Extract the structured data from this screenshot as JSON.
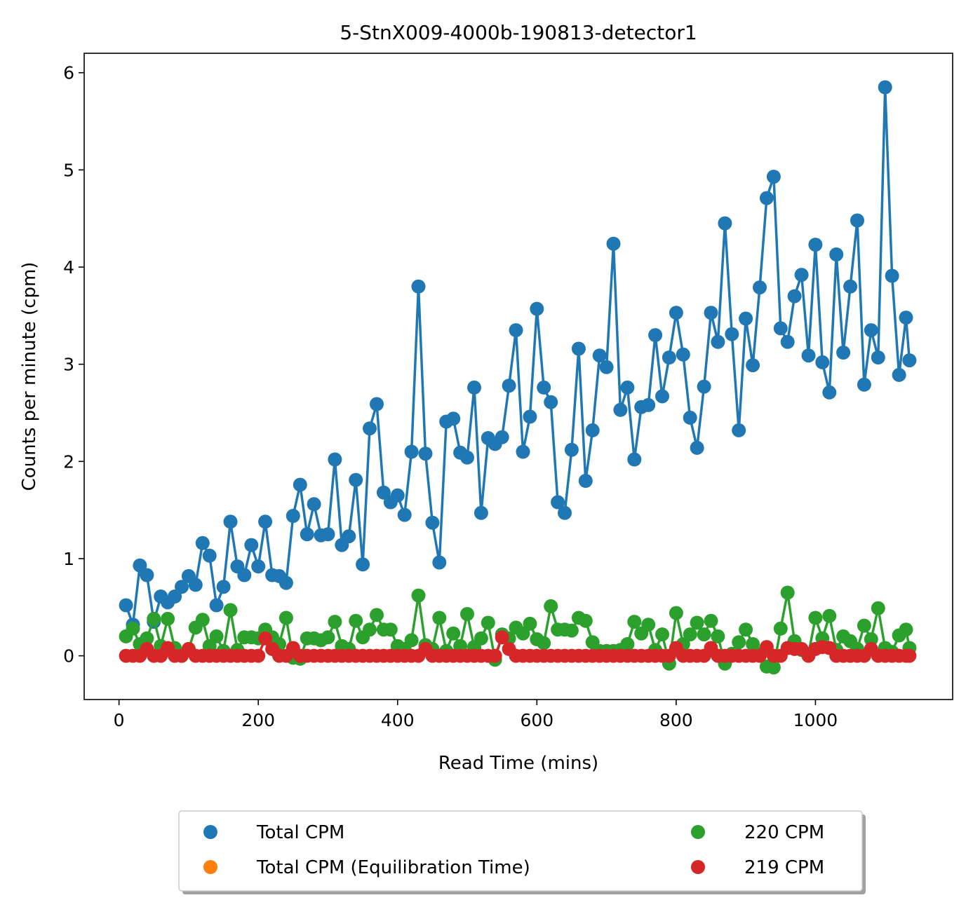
{
  "chart_data": {
    "type": "line",
    "title": "5-StnX009-4000b-190813-detector1",
    "xlabel": "Read Time (mins)",
    "ylabel": "Counts per minute (cpm)",
    "xlim": [
      -50,
      1197
    ],
    "ylim": [
      -0.45,
      6.2
    ],
    "xticks": [
      0,
      200,
      400,
      600,
      800,
      1000
    ],
    "yticks": [
      0,
      1,
      2,
      3,
      4,
      5,
      6
    ],
    "grid": false,
    "legend_placement": "bottom-center",
    "series": [
      {
        "name": "Total CPM",
        "color": "#1f77b4",
        "x": [
          10,
          20,
          30,
          40,
          50,
          60,
          70,
          80,
          90,
          100,
          110,
          120,
          130,
          140,
          150,
          160,
          170,
          180,
          190,
          200,
          210,
          220,
          230,
          240,
          250,
          260,
          270,
          280,
          290,
          300,
          310,
          320,
          330,
          340,
          350,
          360,
          370,
          380,
          390,
          400,
          410,
          420,
          430,
          440,
          450,
          460,
          470,
          480,
          490,
          500,
          510,
          520,
          530,
          540,
          550,
          560,
          570,
          580,
          590,
          600,
          610,
          620,
          630,
          640,
          650,
          660,
          670,
          680,
          690,
          700,
          710,
          720,
          730,
          740,
          750,
          760,
          770,
          780,
          790,
          800,
          810,
          820,
          830,
          840,
          850,
          860,
          870,
          880,
          890,
          900,
          910,
          920,
          930,
          940,
          950,
          960,
          970,
          980,
          990,
          1000,
          1010,
          1020,
          1030,
          1040,
          1050,
          1060,
          1070,
          1080,
          1090,
          1100,
          1110,
          1120,
          1130,
          1135
        ],
        "y": [
          0.52,
          0.32,
          0.93,
          0.83,
          0.35,
          0.61,
          0.55,
          0.61,
          0.71,
          0.82,
          0.73,
          1.16,
          1.03,
          0.52,
          0.71,
          1.38,
          0.92,
          0.83,
          1.14,
          0.92,
          1.38,
          0.83,
          0.82,
          0.75,
          1.44,
          1.76,
          1.25,
          1.56,
          1.24,
          1.25,
          2.02,
          1.14,
          1.23,
          1.81,
          0.94,
          2.34,
          2.59,
          1.68,
          1.58,
          1.65,
          1.45,
          2.1,
          3.8,
          2.08,
          1.37,
          0.96,
          2.41,
          2.44,
          2.09,
          2.04,
          2.76,
          1.47,
          2.24,
          2.18,
          2.25,
          2.78,
          3.35,
          2.1,
          2.46,
          3.57,
          2.76,
          2.61,
          1.58,
          1.47,
          2.12,
          3.16,
          1.8,
          2.32,
          3.09,
          2.97,
          4.24,
          2.53,
          2.76,
          2.02,
          2.56,
          2.58,
          3.3,
          2.67,
          3.07,
          3.53,
          3.1,
          2.45,
          2.14,
          2.77,
          3.53,
          3.23,
          4.45,
          3.31,
          2.32,
          3.47,
          2.99,
          3.79,
          4.71,
          4.93,
          3.37,
          3.23,
          3.7,
          3.92,
          3.09,
          4.23,
          3.02,
          2.71,
          4.13,
          3.12,
          3.8,
          4.48,
          2.79,
          3.35,
          3.07,
          5.85,
          3.91,
          2.89,
          3.48,
          3.04
        ]
      },
      {
        "name": "Total CPM (Equilibration Time)",
        "color": "#ff7f0e",
        "x": [],
        "y": []
      },
      {
        "name": "220 CPM",
        "color": "#2ca02c",
        "x": [
          10,
          20,
          30,
          40,
          50,
          60,
          70,
          80,
          90,
          100,
          110,
          120,
          130,
          140,
          150,
          160,
          170,
          180,
          190,
          200,
          210,
          220,
          230,
          240,
          250,
          260,
          270,
          280,
          290,
          300,
          310,
          320,
          330,
          340,
          350,
          360,
          370,
          380,
          390,
          400,
          410,
          420,
          430,
          440,
          450,
          460,
          470,
          480,
          490,
          500,
          510,
          520,
          530,
          540,
          550,
          560,
          570,
          580,
          590,
          600,
          610,
          620,
          630,
          640,
          650,
          660,
          670,
          680,
          690,
          700,
          710,
          720,
          730,
          740,
          750,
          760,
          770,
          780,
          790,
          800,
          810,
          820,
          830,
          840,
          850,
          860,
          870,
          880,
          890,
          900,
          910,
          920,
          930,
          940,
          950,
          960,
          970,
          980,
          990,
          1000,
          1010,
          1020,
          1030,
          1040,
          1050,
          1060,
          1070,
          1080,
          1090,
          1100,
          1110,
          1120,
          1130,
          1135
        ],
        "y": [
          0.2,
          0.28,
          0.12,
          0.18,
          0.38,
          0.1,
          0.38,
          0.08,
          0.0,
          0.07,
          0.29,
          0.37,
          0.1,
          0.2,
          0.05,
          0.47,
          0.06,
          0.19,
          0.19,
          0.18,
          0.27,
          0.19,
          0.12,
          0.39,
          -0.02,
          -0.03,
          0.18,
          0.18,
          0.16,
          0.19,
          0.35,
          0.1,
          0.07,
          0.36,
          0.19,
          0.27,
          0.42,
          0.27,
          0.27,
          0.1,
          0.07,
          0.16,
          0.62,
          0.11,
          0.07,
          0.39,
          0.05,
          0.23,
          0.1,
          0.43,
          0.09,
          0.18,
          0.34,
          -0.04,
          0.22,
          0.18,
          0.29,
          0.23,
          0.33,
          0.17,
          0.13,
          0.51,
          0.27,
          0.27,
          0.26,
          0.39,
          0.36,
          0.14,
          0.05,
          0.05,
          0.05,
          0.06,
          0.12,
          0.35,
          0.23,
          0.32,
          0.06,
          0.22,
          -0.08,
          0.44,
          0.12,
          0.22,
          0.34,
          0.22,
          0.36,
          0.2,
          -0.08,
          0.02,
          0.14,
          0.27,
          0.12,
          0.02,
          -0.11,
          -0.12,
          0.28,
          0.65,
          0.15,
          0.06,
          0.02,
          0.39,
          0.18,
          0.41,
          0.06,
          0.2,
          0.15,
          0.07,
          0.31,
          0.17,
          0.49,
          0.08,
          0.04,
          0.21,
          0.27,
          0.08
        ]
      },
      {
        "name": "219 CPM",
        "color": "#d62728",
        "x": [
          10,
          20,
          30,
          40,
          50,
          60,
          70,
          80,
          90,
          100,
          110,
          120,
          130,
          140,
          150,
          160,
          170,
          180,
          190,
          200,
          210,
          220,
          230,
          240,
          250,
          260,
          270,
          280,
          290,
          300,
          310,
          320,
          330,
          340,
          350,
          360,
          370,
          380,
          390,
          400,
          410,
          420,
          430,
          440,
          450,
          460,
          470,
          480,
          490,
          500,
          510,
          520,
          530,
          540,
          550,
          560,
          570,
          580,
          590,
          600,
          610,
          620,
          630,
          640,
          650,
          660,
          670,
          680,
          690,
          700,
          710,
          720,
          730,
          740,
          750,
          760,
          770,
          780,
          790,
          800,
          810,
          820,
          830,
          840,
          850,
          860,
          870,
          880,
          890,
          900,
          910,
          920,
          930,
          940,
          950,
          960,
          970,
          980,
          990,
          1000,
          1010,
          1020,
          1030,
          1040,
          1050,
          1060,
          1070,
          1080,
          1090,
          1100,
          1110,
          1120,
          1130,
          1135
        ],
        "y": [
          0.0,
          0.0,
          0.0,
          0.07,
          0.0,
          0.0,
          0.08,
          0.0,
          0.0,
          0.07,
          0.0,
          0.0,
          0.0,
          0.0,
          0.0,
          0.0,
          0.0,
          0.0,
          0.0,
          0.0,
          0.18,
          0.07,
          0.0,
          0.0,
          0.08,
          0.0,
          0.0,
          0.0,
          0.0,
          0.0,
          0.0,
          0.0,
          0.0,
          0.0,
          0.0,
          0.0,
          0.0,
          0.0,
          0.0,
          0.0,
          0.0,
          0.0,
          0.0,
          0.07,
          0.0,
          0.0,
          0.0,
          0.0,
          0.0,
          0.0,
          0.0,
          0.0,
          0.0,
          0.0,
          0.19,
          0.07,
          0.0,
          0.0,
          0.0,
          0.0,
          0.0,
          0.0,
          0.0,
          0.0,
          0.0,
          0.0,
          0.0,
          0.0,
          0.0,
          0.0,
          0.0,
          0.0,
          0.0,
          0.0,
          0.0,
          0.0,
          0.0,
          0.0,
          0.0,
          0.08,
          0.0,
          0.0,
          0.0,
          0.0,
          0.08,
          0.0,
          0.0,
          0.0,
          0.0,
          0.0,
          0.0,
          0.0,
          0.09,
          0.0,
          0.0,
          0.08,
          0.07,
          0.07,
          0.0,
          0.07,
          0.09,
          0.08,
          0.0,
          0.0,
          0.0,
          0.0,
          0.0,
          0.07,
          0.0,
          0.0,
          0.0,
          0.0,
          0.0,
          0.0
        ]
      }
    ]
  }
}
